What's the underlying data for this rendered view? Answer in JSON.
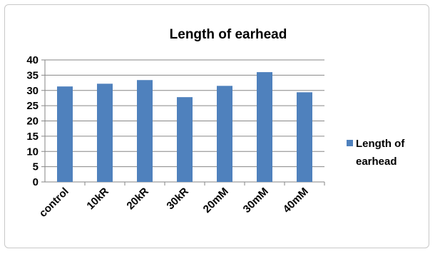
{
  "chart_data": {
    "type": "bar",
    "title": "Length of earhead",
    "categories": [
      "control",
      "10kR",
      "20kR",
      "30kR",
      "20mM",
      "30mM",
      "40mM"
    ],
    "series": [
      {
        "name": "Length of earhead",
        "values": [
          31.3,
          32.2,
          33.4,
          27.8,
          31.5,
          36.0,
          29.4
        ],
        "color": "#4f81bd"
      }
    ],
    "xlabel": "",
    "ylabel": "",
    "ylim": [
      0,
      40
    ],
    "yticks": [
      "0",
      "5",
      "10",
      "15",
      "20",
      "25",
      "30",
      "35",
      "40"
    ],
    "grid": true,
    "legend_position": "right",
    "legend_lines": [
      "Length of",
      "earhead"
    ]
  }
}
